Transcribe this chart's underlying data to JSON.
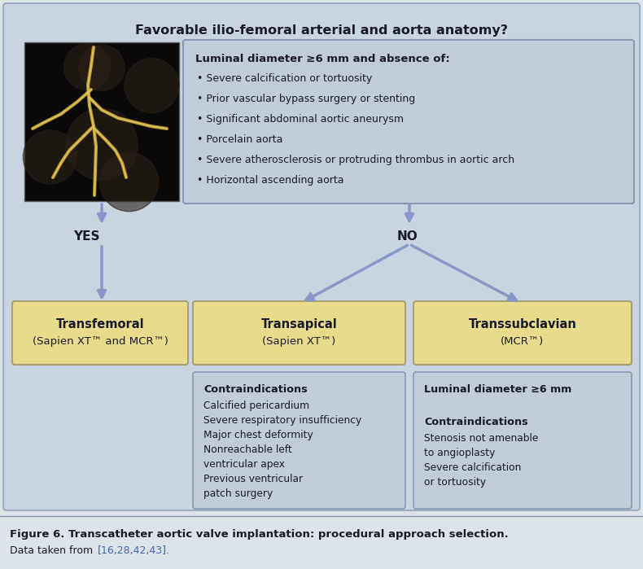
{
  "title": "Favorable ilio-femoral arterial and aorta anatomy?",
  "bg_color": "#c8d4e0",
  "figure_bg": "#dce4ea",
  "box_gray_fill": "#c0ccd8",
  "box_gray_edge": "#8898b0",
  "box_yellow_fill": "#e8dC8c",
  "box_yellow_edge": "#a8a070",
  "arrow_color": "#8898c8",
  "text_dark": "#1a1a2a",
  "text_blue": "#3a5a9a",
  "caption_bg": "#dce4ea",
  "caption_line": "#8898b0",
  "caption_bold": "Figure 6. Transcatheter aortic valve implantation: procedural approach selection.",
  "caption_ref_color": "#4466aa",
  "top_box_title": "Luminal diameter ≥6 mm and absence of:",
  "top_box_bullets": [
    "Severe calcification or tortuosity",
    "Prior vascular bypass surgery or stenting",
    "Significant abdominal aortic aneurysm",
    "Porcelain aorta",
    "Severe atherosclerosis or protruding thrombus in aortic arch",
    "Horizontal ascending aorta"
  ],
  "yes_label": "YES",
  "no_label": "NO",
  "box1_title": "Transfemoral",
  "box1_sub": "(Sapien XT™ and MCR™)",
  "box2_title": "Transapical",
  "box2_sub": "(Sapien XT™)",
  "box3_title": "Transsubclavian",
  "box3_sub": "(MCR™)",
  "contra2_title": "Contraindications",
  "contra2_items": [
    "Calcified pericardium",
    "Severe respiratory insufficiency",
    "Major chest deformity",
    "Nonreachable left",
    "ventricular apex",
    "Previous ventricular",
    "patch surgery"
  ],
  "contra3_title1": "Luminal diameter ≥6 mm",
  "contra3_title2": "Contraindications",
  "contra3_items": [
    "Stenosis not amenable",
    "to angioplasty",
    "Severe calcification",
    "or tortuosity"
  ]
}
